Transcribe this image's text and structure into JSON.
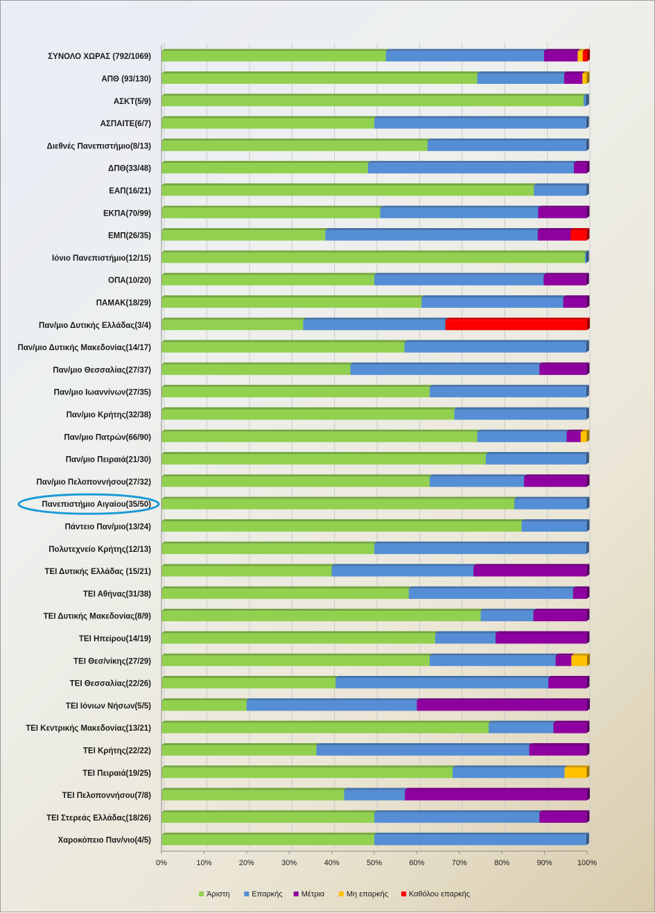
{
  "chart_data": {
    "type": "bar",
    "orientation": "horizontal",
    "stacked": "percent",
    "xlim": [
      0,
      100
    ],
    "x_ticks": [
      "0%",
      "10%",
      "20%",
      "30%",
      "40%",
      "50%",
      "60%",
      "70%",
      "80%",
      "90%",
      "100%"
    ],
    "legend_position": "bottom",
    "highlighted_category": "Πανεπιστήμιο Αιγαίου(35/50)",
    "highlight_color": "#1a9ad6",
    "categories": [
      "ΣΥΝΟΛΟ ΧΩΡΑΣ (792/1069)",
      "ΑΠΘ (93/130)",
      "ΑΣΚΤ(5/9)",
      "ΑΣΠΑΙΤΕ(6/7)",
      "Διεθνές Πανεπιστήμιο(8/13)",
      "ΔΠΘ(33/48)",
      "ΕΑΠ(16/21)",
      "ΕΚΠΑ(70/99)",
      "ΕΜΠ(26/35)",
      "Ιόνιο Πανεπιστήμιο(12/15)",
      "ΟΠΑ(10/20)",
      "ΠΑΜΑΚ(18/29)",
      "Παν/μιο Δυτικής Ελλάδας(3/4)",
      "Παν/μιο Δυτικής Μακεδονίας(14/17)",
      "Παν/μιο Θεσσαλίας(27/37)",
      "Παν/μιο Ιωαννίνων(27/35)",
      "Παν/μιο Κρήτης(32/38)",
      "Παν/μιο Πατρών(66/90)",
      "Παν/μιο Πειραιά(21/30)",
      "Παν/μιο Πελοποννήσου(27/32)",
      "Πανεπιστήμιο Αιγαίου(35/50)",
      "Πάντειο Παν/μιο(13/24)",
      "Πολυτεχνείο Κρήτης(12/13)",
      "ΤΕΙ Δυτικής Ελλάδας (15/21)",
      "ΤΕΙ Αθήνας(31/38)",
      "ΤΕΙ Δυτικής Μακεδονίας(8/9)",
      "ΤΕΙ Ηπείρου(14/19)",
      "ΤΕΙ Θεσ/νίκης(27/29)",
      "ΤΕΙ Θεσσαλίας(22/26)",
      "ΤΕΙ Ιόνιων Νήσων(5/5)",
      "ΤΕΙ Κεντρικής Μακεδονίας(13/21)",
      "ΤΕΙ Κρήτης(22/22)",
      "ΤΕΙ Πειραιά(19/25)",
      "ΤΕΙ Πελοποννήσου(7/8)",
      "ΤΕΙ Στερεάς Ελλάδας(18/26)",
      "Χαροκόπειο Παν/νιο(4/5)"
    ],
    "series": [
      {
        "name": "Άριστη",
        "color": "#92d050",
        "values": [
          52.7,
          74.2,
          99.2,
          50.0,
          62.5,
          48.5,
          87.5,
          51.4,
          38.5,
          99.5,
          50.0,
          61.1,
          33.3,
          57.1,
          44.4,
          63.0,
          68.8,
          74.2,
          76.2,
          63.0,
          82.9,
          84.6,
          50.0,
          40.0,
          58.1,
          75.0,
          64.3,
          63.0,
          40.9,
          20.0,
          76.9,
          36.4,
          68.4,
          42.9,
          50.0,
          50.0
        ]
      },
      {
        "name": "Επαρκής",
        "color": "#558ed5",
        "values": [
          37.2,
          20.4,
          0.6,
          49.8,
          37.3,
          48.4,
          12.3,
          37.1,
          49.9,
          0.3,
          39.8,
          33.3,
          33.4,
          42.7,
          44.4,
          36.8,
          31.0,
          21.0,
          23.6,
          22.2,
          17.0,
          15.3,
          49.8,
          33.3,
          38.6,
          12.4,
          14.2,
          29.6,
          50.0,
          40.0,
          15.2,
          50.0,
          26.3,
          14.3,
          38.8,
          49.8
        ]
      },
      {
        "name": "Μέτρια",
        "color": "#8e00a0",
        "values": [
          7.9,
          4.3,
          0.0,
          0.0,
          0.0,
          3.0,
          0.0,
          11.4,
          7.7,
          0.0,
          10.0,
          5.5,
          0.0,
          0.0,
          11.1,
          0.0,
          0.0,
          3.3,
          0.0,
          14.7,
          0.0,
          0.0,
          0.0,
          26.6,
          3.2,
          12.5,
          21.4,
          3.7,
          9.0,
          40.0,
          7.8,
          13.5,
          0.0,
          42.8,
          11.1,
          0.0
        ]
      },
      {
        "name": "Μη επαρκής",
        "color": "#ffc000",
        "values": [
          1.2,
          1.0,
          0.0,
          0.0,
          0.0,
          0.0,
          0.0,
          0.0,
          0.0,
          0.0,
          0.0,
          0.0,
          0.0,
          0.0,
          0.0,
          0.0,
          0.0,
          1.4,
          0.0,
          0.0,
          0.0,
          0.0,
          0.0,
          0.0,
          0.0,
          0.0,
          0.0,
          3.7,
          0.0,
          0.0,
          0.0,
          0.0,
          5.2,
          0.0,
          0.0,
          0.0
        ]
      },
      {
        "name": "Καθόλου επαρκής",
        "color": "#ff0000",
        "values": [
          1.0,
          0.0,
          0.0,
          0.0,
          0.0,
          0.0,
          0.0,
          0.0,
          3.8,
          0.0,
          0.0,
          0.0,
          33.3,
          0.0,
          0.0,
          0.0,
          0.0,
          0.0,
          0.0,
          0.0,
          0.0,
          0.0,
          0.0,
          0.0,
          0.0,
          0.0,
          0.0,
          0.0,
          0.0,
          0.0,
          0.0,
          0.0,
          0.0,
          0.0,
          0.0,
          0.0
        ]
      }
    ]
  }
}
